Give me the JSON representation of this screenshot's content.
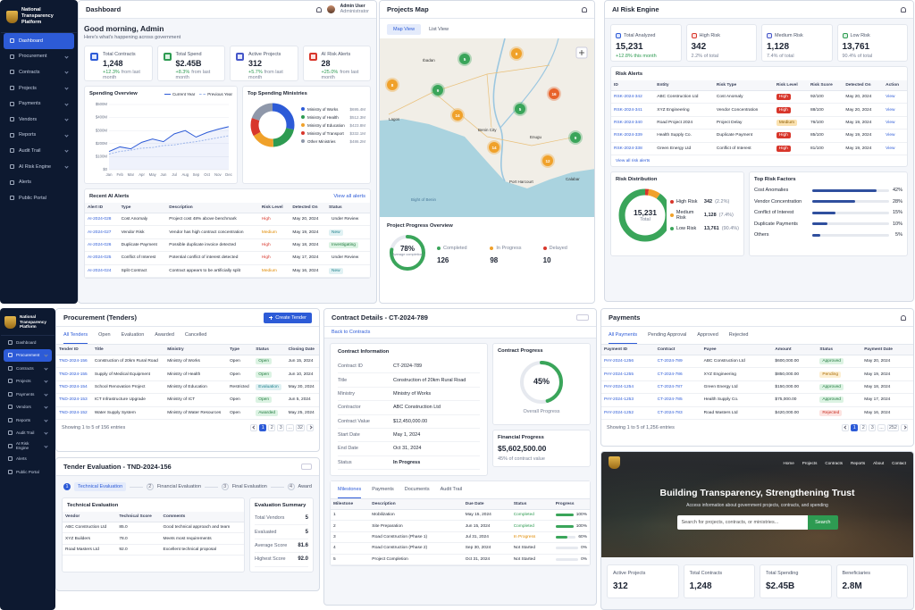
{
  "sidebar": {
    "brand": "National Transparency Platform",
    "items": [
      "Dashboard",
      "Procurement",
      "Contracts",
      "Projects",
      "Payments",
      "Vendors",
      "Reports",
      "Audit Trail",
      "AI Risk Engine",
      "Alerts",
      "Public Portal"
    ]
  },
  "dashboard": {
    "title": "Dashboard",
    "user": "Admin User",
    "role": "Administrator",
    "greeting": "Good morning, Admin",
    "subtitle": "Here's what's happening across government",
    "stats": [
      {
        "label": "Total Contracts",
        "value": "1,248",
        "change": "+12.3%",
        "note": "from last month"
      },
      {
        "label": "Total Spend",
        "value": "$2.45B",
        "change": "+8.3%",
        "note": "from last month"
      },
      {
        "label": "Active Projects",
        "value": "312",
        "change": "+5.7%",
        "note": "from last month"
      },
      {
        "label": "AI Risk Alerts",
        "value": "28",
        "change": "+25.0%",
        "note": "from last month"
      }
    ],
    "spending": {
      "type": "line",
      "title": "Spending Overview",
      "x": [
        "Jan",
        "Feb",
        "Mar",
        "Apr",
        "May",
        "Jun",
        "Jul",
        "Aug",
        "Sep",
        "Oct",
        "Nov",
        "Dec"
      ],
      "series": [
        {
          "name": "Current Year",
          "color": "#2d5bd7",
          "values": [
            140,
            175,
            160,
            210,
            235,
            215,
            275,
            300,
            250,
            285,
            310,
            330
          ]
        },
        {
          "name": "Previous Year",
          "color": "#9db6ea",
          "dashed": true,
          "values": [
            120,
            140,
            150,
            165,
            170,
            185,
            190,
            205,
            215,
            230,
            245,
            260
          ]
        }
      ],
      "ylim": [
        0,
        500
      ],
      "yticks": [
        {
          "value": 0,
          "label": "$0"
        },
        {
          "value": 100,
          "label": "$100M"
        },
        {
          "value": 200,
          "label": "$200M"
        },
        {
          "value": 300,
          "label": "$300M"
        },
        {
          "value": 400,
          "label": "$400M"
        },
        {
          "value": 500,
          "label": "$500M"
        }
      ]
    },
    "ministries": {
      "type": "pie",
      "title": "Top Spending Ministries",
      "categories": [
        "Ministry of Works",
        "Ministry of Health",
        "Ministry of Education",
        "Ministry of Transport",
        "Other Ministries"
      ],
      "values": [
        695.4,
        512.3,
        423.8,
        332.1,
        486.2
      ],
      "value_labels": [
        "$695.4M",
        "$512.3M",
        "$423.8M",
        "$332.1M",
        "$486.2M"
      ],
      "colors": [
        "#2d5bd7",
        "#2e9b52",
        "#f0a12a",
        "#d8362b",
        "#8f98aa"
      ]
    },
    "alerts": {
      "title": "Recent AI Alerts",
      "link": "View all alerts",
      "columns": [
        "Alert ID",
        "Type",
        "Description",
        "Risk Level",
        "Detected On",
        "Status"
      ],
      "rows": [
        [
          "AI-2024-028",
          "Cost Anomaly",
          "Project cost 48% above benchmark",
          "High",
          "May 20, 2024",
          "Under Review"
        ],
        [
          "AI-2024-027",
          "Vendor Risk",
          "Vendor has high contract concentration",
          "Medium",
          "May 19, 2024",
          "New"
        ],
        [
          "AI-2024-026",
          "Duplicate Payment",
          "Possible duplicate invoice detected",
          "High",
          "May 18, 2024",
          "Investigating"
        ],
        [
          "AI-2024-025",
          "Conflict of Interest",
          "Potential conflict of interest detected",
          "High",
          "May 17, 2024",
          "Under Review"
        ],
        [
          "AI-2024-024",
          "Split Contract",
          "Contract appears to be artificially split",
          "Medium",
          "May 16, 2024",
          "New"
        ]
      ]
    }
  },
  "map": {
    "title": "Projects Map",
    "tabs": [
      "Map View",
      "List View"
    ],
    "clusters": [
      {
        "label": "5",
        "color": "#3aa55a"
      },
      {
        "label": "9",
        "color": "#f0a12a"
      },
      {
        "label": "8",
        "color": "#f0a12a"
      },
      {
        "label": "9",
        "color": "#3aa55a"
      },
      {
        "label": "14",
        "color": "#f0a12a"
      },
      {
        "label": "5",
        "color": "#3aa55a"
      },
      {
        "label": "16",
        "color": "#e8622a"
      },
      {
        "label": "14",
        "color": "#f0a12a"
      },
      {
        "label": "9",
        "color": "#3aa55a"
      },
      {
        "label": "12",
        "color": "#f0a12a"
      }
    ],
    "places": [
      "Ibadan",
      "Lagos",
      "Benin City",
      "Enugu",
      "Port Harcourt",
      "Calabar",
      "Bight of Benin"
    ],
    "progress": {
      "title": "Project Progress Overview",
      "value": 78,
      "label": "78%",
      "caption": "Average completion",
      "items": [
        {
          "name": "Completed",
          "value": "126",
          "color": "#3aa55a"
        },
        {
          "name": "In Progress",
          "value": "98",
          "color": "#f0a12a"
        },
        {
          "name": "Delayed",
          "value": "10",
          "color": "#d8362b"
        }
      ]
    }
  },
  "risk": {
    "title": "AI Risk Engine",
    "stats": [
      {
        "label": "Total Analyzed",
        "value": "15,231",
        "note": "+12.8% this month"
      },
      {
        "label": "High Risk",
        "value": "342",
        "note": "2.2% of total"
      },
      {
        "label": "Medium Risk",
        "value": "1,128",
        "note": "7.4% of total"
      },
      {
        "label": "Low Risk",
        "value": "13,761",
        "note": "90.4% of total"
      }
    ],
    "alerts": {
      "title": "Risk Alerts",
      "link": "View all risk alerts",
      "columns": [
        "ID",
        "Entity",
        "Risk Type",
        "Risk Level",
        "Risk Score",
        "Detected On",
        "Action"
      ],
      "rows": [
        [
          "RSK-2024-342",
          "ABC Construction Ltd",
          "Cost Anomaly",
          "High",
          "92/100",
          "May 20, 2024",
          "View"
        ],
        [
          "RSK-2024-341",
          "XYZ Engineering",
          "Vendor Concentration",
          "High",
          "88/100",
          "May 20, 2024",
          "View"
        ],
        [
          "RSK-2024-340",
          "Road Project 2024",
          "Project Delay",
          "Medium",
          "76/100",
          "May 19, 2024",
          "View"
        ],
        [
          "RSK-2024-339",
          "Health Supply Co.",
          "Duplicate Payment",
          "High",
          "85/100",
          "May 19, 2024",
          "View"
        ],
        [
          "RSK-2024-338",
          "Green Energy Ltd",
          "Conflict of Interest",
          "High",
          "81/100",
          "May 19, 2024",
          "View"
        ]
      ]
    },
    "distribution": {
      "type": "pie",
      "title": "Risk Distribution",
      "total": "15,231",
      "total_label": "Total",
      "categories": [
        "High Risk",
        "Medium Risk",
        "Low Risk"
      ],
      "values": [
        342,
        1128,
        13761
      ],
      "value_labels": [
        "342",
        "1,128",
        "13,761"
      ],
      "shares": [
        "(2.2%)",
        "(7.4%)",
        "(90.4%)"
      ],
      "colors": [
        "#d8362b",
        "#f0a12a",
        "#3aa55a"
      ]
    },
    "factors": {
      "type": "bar",
      "title": "Top Risk Factors",
      "categories": [
        "Cost Anomalies",
        "Vendor Concentration",
        "Conflict of Interest",
        "Duplicate Payments",
        "Others"
      ],
      "values": [
        42,
        28,
        15,
        10,
        5
      ],
      "value_labels": [
        "42%",
        "28%",
        "15%",
        "10%",
        "5%"
      ],
      "xlim": [
        0,
        50
      ],
      "color": "#2f4f9e"
    }
  },
  "procurement": {
    "title": "Procurement (Tenders)",
    "button": "Create Tender",
    "tabs": [
      "All Tenders",
      "Open",
      "Evaluation",
      "Awarded",
      "Cancelled"
    ],
    "table": {
      "columns": [
        "Tender ID",
        "Title",
        "Ministry",
        "Type",
        "Status",
        "Closing Date"
      ],
      "rows": [
        [
          "TND-2024-156",
          "Construction of 20km Rural Road",
          "Ministry of Works",
          "Open",
          "Open",
          "Jun 15, 2024"
        ],
        [
          "TND-2024-155",
          "Supply of Medical Equipment",
          "Ministry of Health",
          "Open",
          "Open",
          "Jun 10, 2024"
        ],
        [
          "TND-2024-154",
          "School Renovation Project",
          "Ministry of Education",
          "Restricted",
          "Evaluation",
          "May 30, 2024"
        ],
        [
          "TND-2024-153",
          "ICT Infrastructure Upgrade",
          "Ministry of ICT",
          "Open",
          "Open",
          "Jun 5, 2024"
        ],
        [
          "TND-2024-152",
          "Water Supply System",
          "Ministry of Water Resources",
          "Open",
          "Awarded",
          "May 25, 2024"
        ]
      ]
    },
    "showing": "Showing 1 to 5 of 156 entries",
    "pages": [
      "1",
      "2",
      "3",
      "...",
      "32"
    ]
  },
  "evaluation": {
    "title": "Tender Evaluation - TND-2024-156",
    "steps": [
      {
        "num": "1",
        "label": "Technical Evaluation"
      },
      {
        "num": "2",
        "label": "Financial Evaluation"
      },
      {
        "num": "3",
        "label": "Final Evaluation"
      },
      {
        "num": "4",
        "label": "Award"
      }
    ],
    "technical": {
      "title": "Technical Evaluation",
      "columns": [
        "Vendor",
        "Technical Score",
        "Comments"
      ],
      "rows": [
        [
          "ABC Construction Ltd",
          "85.0",
          "Good technical approach and team"
        ],
        [
          "XYZ Builders",
          "78.0",
          "Meets most requirements"
        ],
        [
          "Road Masters Ltd",
          "92.0",
          "Excellent technical proposal"
        ]
      ]
    },
    "summary": {
      "title": "Evaluation Summary",
      "fields": [
        [
          "Total Vendors",
          "5"
        ],
        [
          "Evaluated",
          "5"
        ],
        [
          "Average Score",
          "81.6"
        ],
        [
          "Highest Score",
          "92.0"
        ]
      ]
    }
  },
  "contract": {
    "title": "Contract Details - CT-2024-789",
    "back": "Back to Contracts",
    "info_title": "Contract Information",
    "fields": [
      [
        "Contract ID",
        "CT-2024-789"
      ],
      [
        "Title",
        "Construction of 20km Rural Road"
      ],
      [
        "Ministry",
        "Ministry of Works"
      ],
      [
        "Contractor",
        "ABC Construction Ltd"
      ],
      [
        "Contract Value",
        "$12,450,000.00"
      ],
      [
        "Start Date",
        "May 1, 2024"
      ],
      [
        "End Date",
        "Oct 31, 2024"
      ],
      [
        "Status",
        "In Progress"
      ]
    ],
    "progress": {
      "title": "Contract Progress",
      "value": 45,
      "label": "45%",
      "caption": "Overall Progress"
    },
    "financial": {
      "title": "Financial Progress",
      "value": "$5,602,500.00",
      "caption": "45% of contract value"
    },
    "tabs": [
      "Milestones",
      "Payments",
      "Documents",
      "Audit Trail"
    ],
    "milestones": {
      "columns": [
        "Milestone",
        "Description",
        "Due Date",
        "Status",
        "Progress"
      ],
      "rows": [
        [
          "1",
          "Mobilization",
          "May 15, 2024",
          "Completed"
        ],
        [
          "2",
          "Site Preparation",
          "Jun 15, 2024",
          "Completed"
        ],
        [
          "3",
          "Road Construction (Phase 1)",
          "Jul 31, 2024",
          "In Progress"
        ],
        [
          "4",
          "Road Construction (Phase 2)",
          "Sep 30, 2024",
          "Not Started"
        ],
        [
          "5",
          "Project Completion",
          "Oct 31, 2024",
          "Not Started"
        ]
      ],
      "progress": [
        100,
        100,
        60,
        0,
        0
      ],
      "progress_labels": [
        "100%",
        "100%",
        "60%",
        "0%",
        "0%"
      ]
    }
  },
  "payments": {
    "title": "Payments",
    "tabs": [
      "All Payments",
      "Pending Approval",
      "Approved",
      "Rejected"
    ],
    "table": {
      "columns": [
        "Payment ID",
        "Contract",
        "Payee",
        "Amount",
        "Status",
        "Payment Date"
      ],
      "rows": [
        [
          "PAY-2024-1256",
          "CT-2024-789",
          "ABC Construction Ltd",
          "$600,000.00",
          "Approved",
          "May 20, 2024"
        ],
        [
          "PAY-2024-1255",
          "CT-2024-786",
          "XYZ Engineering",
          "$850,000.00",
          "Pending",
          "May 19, 2024"
        ],
        [
          "PAY-2024-1254",
          "CT-2024-787",
          "Green Energy Ltd",
          "$150,000.00",
          "Approved",
          "May 18, 2024"
        ],
        [
          "PAY-2024-1253",
          "CT-2024-785",
          "Health Supply Co.",
          "$75,000.00",
          "Approved",
          "May 17, 2024"
        ],
        [
          "PAY-2024-1252",
          "CT-2024-783",
          "Road Masters Ltd",
          "$420,000.00",
          "Rejected",
          "May 16, 2024"
        ]
      ]
    },
    "showing": "Showing 1 to 5 of 1,256 entries",
    "pages": [
      "1",
      "2",
      "3",
      "...",
      "252"
    ]
  },
  "portal": {
    "nav": [
      "Home",
      "Projects",
      "Contracts",
      "Reports",
      "About",
      "Contact"
    ],
    "headline": "Building Transparency, Strengthening Trust",
    "tagline": "Access information about government projects, contracts, and spending",
    "search_placeholder": "Search for projects, contracts, or ministries...",
    "search_button": "Search",
    "stats": [
      {
        "label": "Active Projects",
        "value": "312"
      },
      {
        "label": "Total Contracts",
        "value": "1,248"
      },
      {
        "label": "Total Spending",
        "value": "$2.45B"
      },
      {
        "label": "Beneficiaries",
        "value": "2.8M"
      }
    ]
  }
}
